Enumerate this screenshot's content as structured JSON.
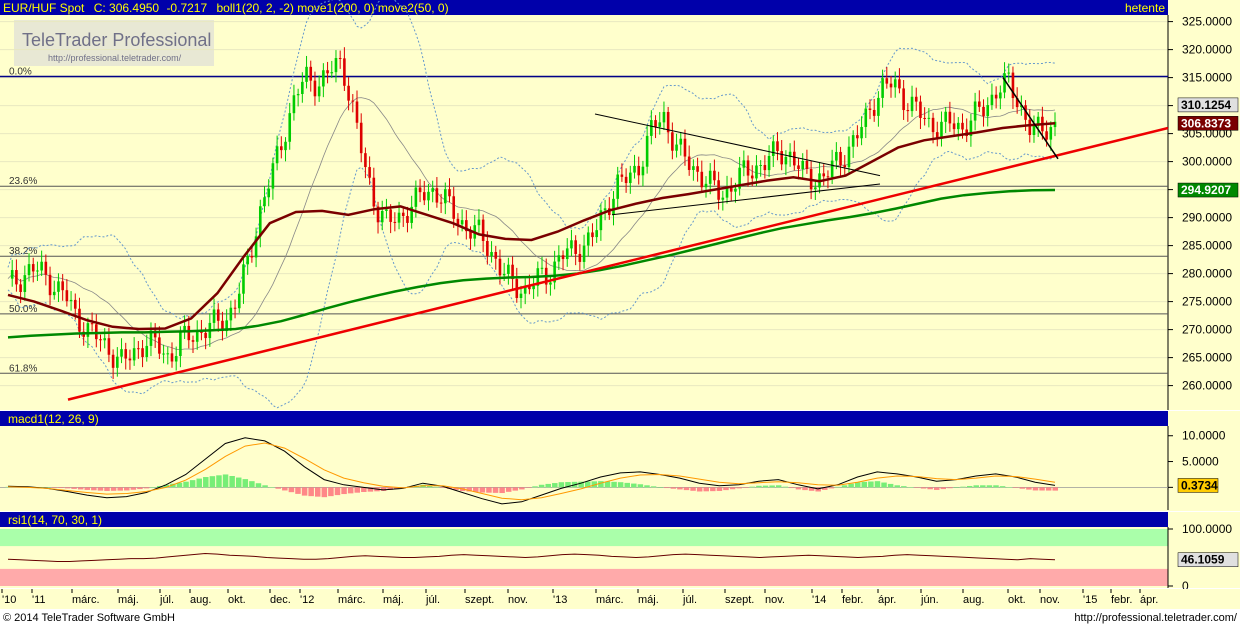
{
  "header": {
    "symbol": "EUR/HUF Spot",
    "close_label": "C: 306.4950",
    "change": "-0.7217",
    "studies": "boll1(20, 2, -2) move1(200, 0) move2(50, 0)",
    "period": "hetente"
  },
  "branding": {
    "logo": "TeleTrader Professional",
    "url": "http://professional.teletrader.com/"
  },
  "footer": {
    "copyright": "© 2014 TeleTrader Software GmbH",
    "url": "http://professional.teletrader.com/"
  },
  "colors": {
    "panel_bg": "#ffffcc",
    "header_bg": "#0000aa",
    "header_text": "#ffff00",
    "up_candle": "#00cc00",
    "down_candle": "#dd0000",
    "ma200": "#008800",
    "ma50": "#7a0000",
    "bollinger": "#6699cc",
    "trend": "#ee0000",
    "macd_line": "#000000",
    "signal_line": "#ff9900",
    "hist_pos": "#77ee77",
    "hist_neg": "#ff8888",
    "rsi_line": "#660000",
    "rsi_overbought": "#aaffaa",
    "rsi_oversold": "#ffaaaa"
  },
  "chart_data": [
    {
      "type": "candlestick",
      "title": "EUR/HUF Spot",
      "ylim": [
        256.0,
        326.0
      ],
      "yticks": [
        "325.0000",
        "320.0000",
        "315.0000",
        "310.0000",
        "305.0000",
        "300.0000",
        "295.0000",
        "290.0000",
        "285.0000",
        "280.0000",
        "275.0000",
        "270.0000",
        "265.0000",
        "260.0000"
      ],
      "x_labels": [
        "'10",
        "'11",
        "márc.",
        "máj.",
        "júl.",
        "aug.",
        "okt.",
        "dec.",
        "'12",
        "márc.",
        "máj.",
        "júl.",
        "szept.",
        "nov.",
        "'13",
        "márc.",
        "máj.",
        "júl.",
        "szept.",
        "nov.",
        "'14",
        "febr.",
        "ápr.",
        "jún.",
        "aug.",
        "okt.",
        "nov.",
        "'15",
        "febr.",
        "ápr."
      ],
      "fibonacci": [
        {
          "label": "0.0%",
          "value": 315.2
        },
        {
          "label": "23.6%",
          "value": 295.6
        },
        {
          "label": "38.2%",
          "value": 283.1
        },
        {
          "label": "50.0%",
          "value": 272.8
        },
        {
          "label": "61.8%",
          "value": 262.2
        }
      ],
      "value_tags": [
        {
          "value": "310.1254",
          "y": 310.1254
        },
        {
          "value": "306.8373",
          "y": 306.8373
        },
        {
          "value": "294.9207",
          "y": 294.9207
        }
      ],
      "series": [
        {
          "name": "",
          "kind": "close",
          "values": [
            278,
            279,
            281,
            280,
            278,
            276,
            272,
            270,
            268,
            266,
            264,
            266,
            268,
            267,
            265,
            268,
            269,
            270,
            271,
            272,
            276,
            283,
            292,
            298,
            305,
            312,
            315,
            314,
            316,
            318,
            309,
            299,
            292,
            289,
            290,
            292,
            294,
            295,
            293,
            290,
            288,
            287,
            284,
            280,
            278,
            277,
            279,
            280,
            283,
            284,
            285,
            287,
            292,
            296,
            297,
            300,
            306,
            308,
            303,
            300,
            298,
            296,
            294,
            296,
            298,
            299,
            300,
            302,
            301,
            298,
            297,
            297,
            300,
            302,
            305,
            310,
            313,
            314,
            311,
            309,
            307,
            306,
            307,
            306,
            308,
            310,
            313,
            314,
            310,
            305,
            306,
            306.5
          ]
        },
        {
          "name": "",
          "kind": "ma200",
          "values": [
            268.6,
            268.9,
            269.1,
            269.3,
            269.4,
            269.5,
            269.5,
            269.6,
            269.7,
            269.9,
            270.1,
            270.7,
            271.5,
            272.6,
            273.8,
            274.9,
            275.9,
            276.8,
            277.6,
            278.3,
            278.8,
            279.1,
            279.3,
            279.4,
            279.6,
            280.0,
            280.6,
            281.4,
            282.3,
            283.2,
            284.2,
            285.2,
            286.2,
            287.2,
            288.1,
            288.8,
            289.5,
            290.1,
            290.8,
            291.6,
            292.5,
            293.4,
            294.0,
            294.4,
            294.7,
            294.9,
            294.92
          ]
        },
        {
          "name": "",
          "kind": "ma50",
          "values": [
            276.2,
            275.0,
            273.4,
            271.7,
            270.5,
            270.1,
            270.2,
            272.0,
            276.5,
            283.0,
            289.0,
            291.0,
            291.2,
            290.5,
            291.5,
            292.0,
            290.5,
            289.0,
            287.0,
            286.2,
            286.0,
            287.5,
            289.5,
            291.3,
            292.5,
            293.5,
            294.2,
            295.0,
            295.8,
            296.6,
            297.2,
            296.5,
            297.5,
            300.0,
            302.5,
            303.8,
            304.5,
            305.2,
            306.0,
            306.5,
            306.84
          ]
        },
        {
          "name": "",
          "kind": "trendline",
          "values": [
            257.5,
            306.0
          ]
        }
      ]
    },
    {
      "type": "line",
      "title": "macd1(12, 26, 9)",
      "ylim": [
        -4.0,
        11.5
      ],
      "yticks": [
        "10.0000",
        "5.0000",
        "0"
      ],
      "value_tag": "0.3734",
      "series": [
        {
          "name": "",
          "kind": "macd",
          "values": [
            0.2,
            0.1,
            -0.2,
            -0.8,
            -1.5,
            -2.0,
            -1.8,
            -1.0,
            0.5,
            2.5,
            5.5,
            8.5,
            9.6,
            9.0,
            7.0,
            4.0,
            1.5,
            0.5,
            0.0,
            -0.5,
            -0.2,
            0.8,
            0.2,
            -1.0,
            -2.2,
            -3.2,
            -2.8,
            -1.5,
            -0.2,
            0.8,
            2.0,
            2.8,
            3.0,
            2.5,
            1.8,
            0.8,
            0.3,
            0.5,
            1.2,
            1.5,
            0.5,
            -0.3,
            0.5,
            2.0,
            3.0,
            2.6,
            2.0,
            1.2,
            1.5,
            2.2,
            2.6,
            2.0,
            1.0,
            0.37
          ]
        },
        {
          "name": "",
          "kind": "signal",
          "values": [
            0.1,
            0.0,
            -0.2,
            -0.6,
            -1.0,
            -1.3,
            -1.2,
            -0.8,
            0.0,
            1.4,
            3.5,
            6.0,
            8.0,
            8.6,
            7.6,
            5.6,
            3.4,
            1.8,
            0.9,
            0.2,
            -0.1,
            0.3,
            0.3,
            -0.3,
            -1.2,
            -2.1,
            -2.4,
            -2.0,
            -1.2,
            -0.3,
            0.8,
            1.8,
            2.4,
            2.5,
            2.2,
            1.6,
            1.0,
            0.7,
            0.9,
            1.1,
            0.9,
            0.5,
            0.4,
            1.0,
            1.8,
            2.2,
            2.1,
            1.7,
            1.5,
            1.8,
            2.2,
            2.1,
            1.6,
            1.0
          ]
        }
      ]
    },
    {
      "type": "line",
      "title": "rsi1(14, 70, 30, 1)",
      "ylim": [
        0,
        100
      ],
      "yticks": [
        "100.0000",
        "0"
      ],
      "value_tag": "46.1059",
      "bands": {
        "overbought": 70,
        "oversold": 30
      },
      "series": [
        {
          "name": "",
          "kind": "rsi",
          "values": [
            47,
            46,
            45,
            44,
            43,
            43,
            44,
            45,
            46,
            47,
            48,
            48,
            49,
            51,
            53,
            55,
            57,
            56,
            54,
            53,
            52,
            50,
            49,
            48,
            47,
            47,
            48,
            50,
            52,
            53,
            52,
            51,
            50,
            50,
            51,
            52,
            54,
            55,
            54,
            53,
            52,
            51,
            50,
            51,
            53,
            55,
            56,
            55,
            54,
            52,
            51,
            50,
            51,
            53,
            55,
            56,
            55,
            54,
            53,
            52,
            51,
            50,
            51,
            52,
            53,
            54,
            53,
            52,
            51,
            50,
            51,
            52,
            54,
            55,
            54,
            53,
            52,
            51,
            50,
            49,
            48,
            47,
            46,
            48,
            47,
            46.1
          ]
        }
      ]
    }
  ]
}
